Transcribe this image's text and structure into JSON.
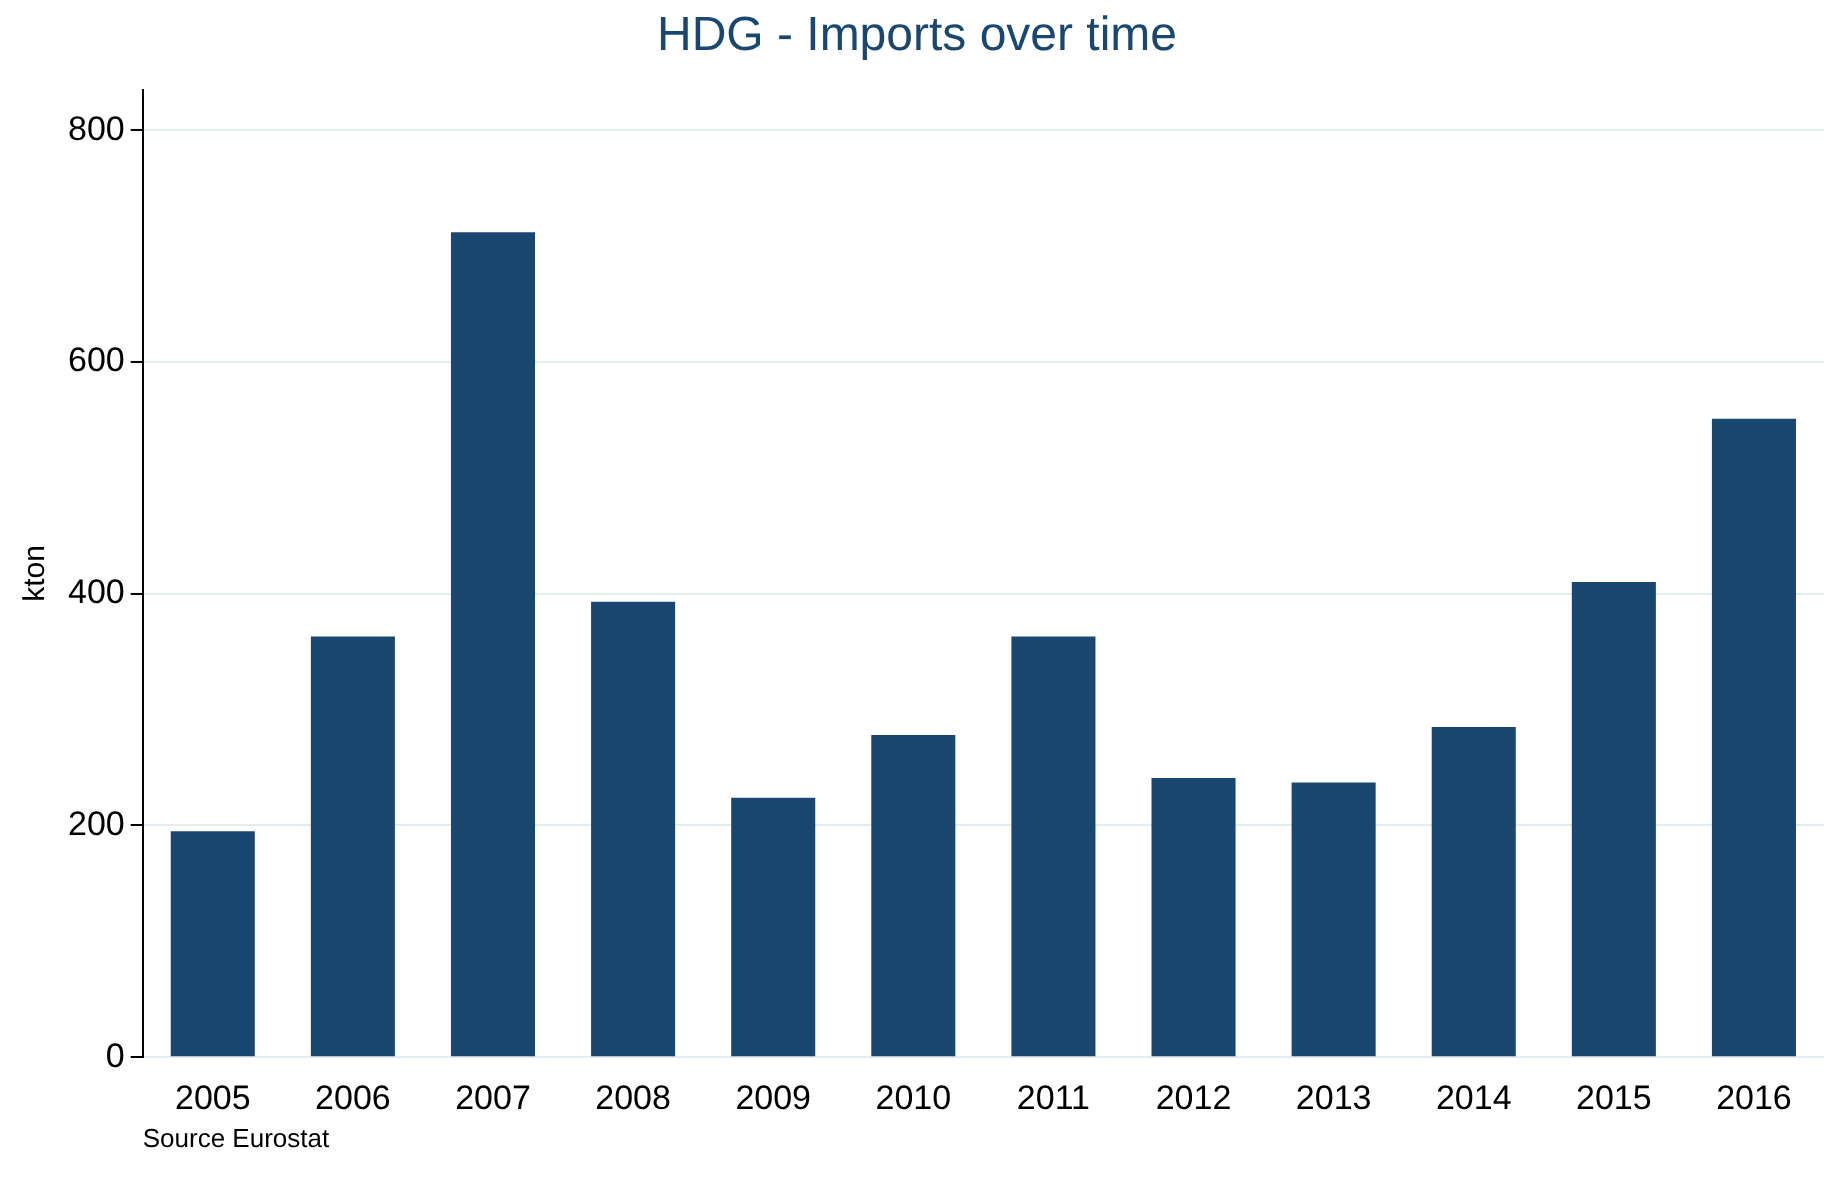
{
  "chart_data": {
    "type": "bar",
    "title": "HDG - Imports over time",
    "ylabel": "kton",
    "categories": [
      "2005",
      "2006",
      "2007",
      "2008",
      "2009",
      "2010",
      "2011",
      "2012",
      "2013",
      "2014",
      "2015",
      "2016"
    ],
    "values": [
      195,
      363,
      712,
      393,
      224,
      278,
      363,
      241,
      237,
      285,
      410,
      551
    ],
    "color": "#1a476f",
    "ylim": [
      0,
      835
    ],
    "yticks": [
      0,
      200,
      400,
      600,
      800
    ],
    "grid": "y",
    "annotations": [
      "Source Eurostat"
    ]
  }
}
